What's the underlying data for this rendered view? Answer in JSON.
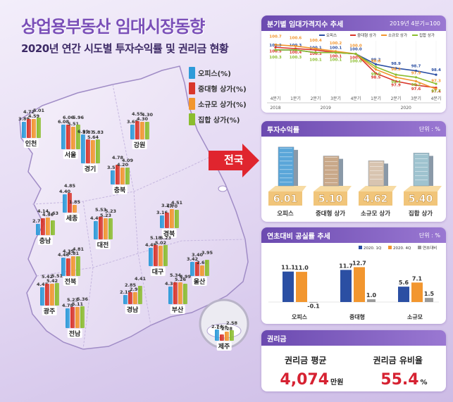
{
  "header": {
    "title": "상업용부동산 임대시장동향",
    "subtitle": "2020년 연간 시도별 투자수익률 및 권리금 현황"
  },
  "legend": [
    {
      "label": "오피스(%)",
      "color": "#2e9bd9"
    },
    {
      "label": "중대형 상가(%)",
      "color": "#d9362b"
    },
    {
      "label": "소규모 상가(%)",
      "color": "#f2962f"
    },
    {
      "label": "집합 상가(%)",
      "color": "#8bbd2e"
    }
  ],
  "arrow_label": "전국",
  "chart_data": [
    {
      "type": "bar",
      "title": "",
      "series_names": [
        "오피스(%)",
        "중대형 상가(%)",
        "소규모 상가(%)",
        "집합 상가(%)"
      ],
      "regions": [
        {
          "name": "인천",
          "values": [
            3.89,
            4.72,
            4.59,
            5.01
          ]
        },
        {
          "name": "서울",
          "values": [
            6.08,
            6.06,
            5.51,
            5.96
          ]
        },
        {
          "name": "경기",
          "values": [
            6.99,
            5.87,
            5.64,
            5.83
          ]
        },
        {
          "name": "강원",
          "values": [
            3.68,
            4.55,
            4.3,
            4.3
          ]
        },
        {
          "name": "충북",
          "values": [
            3.51,
            4.78,
            4.2,
            4.09
          ]
        },
        {
          "name": "세종",
          "values": [
            4.4,
            4.85,
            1.85,
            null
          ]
        },
        {
          "name": "충남",
          "values": [
            2.76,
            4.14,
            4.36,
            3.63
          ]
        },
        {
          "name": "대전",
          "values": [
            4.49,
            5.53,
            5.23,
            5.23
          ]
        },
        {
          "name": "경북",
          "values": [
            3.16,
            3.79,
            4.7,
            4.51
          ]
        },
        {
          "name": "전북",
          "values": [
            4.46,
            4.39,
            4.81,
            4.81
          ]
        },
        {
          "name": "대구",
          "values": [
            4.48,
            5.18,
            5.02,
            5.23
          ]
        },
        {
          "name": "울산",
          "values": [
            3.42,
            3.4,
            2.62,
            3.95
          ]
        },
        {
          "name": "광주",
          "values": [
            4.42,
            5.42,
            5.42,
            5.51
          ]
        },
        {
          "name": "경남",
          "values": [
            2.19,
            2.85,
            2.96,
            4.41
          ]
        },
        {
          "name": "부산",
          "values": [
            4.34,
            5.34,
            5.26,
            4.99
          ]
        },
        {
          "name": "전남",
          "values": [
            4.78,
            5.23,
            5.11,
            5.36
          ]
        },
        {
          "name": "제주",
          "values": [
            2.74,
            1.58,
            2.28,
            2.58
          ]
        }
      ]
    },
    {
      "type": "line",
      "title": "분기별 임대가격지수 추세",
      "note": "2019년 4분기=100",
      "x": [
        "4분기",
        "1분기",
        "2분기",
        "3분기",
        "4분기",
        "1분기",
        "2분기",
        "3분기",
        "4분기"
      ],
      "years": [
        {
          "label": "2018"
        },
        {
          "label": "2019"
        },
        {
          "label": "2020"
        }
      ],
      "series": [
        {
          "name": "오피스",
          "color": "#2b4fa3",
          "values": [
            100.3,
            100.3,
            100.1,
            100.1,
            100.0,
            99.2,
            98.9,
            98.7,
            98.4
          ]
        },
        {
          "name": "중대형 상가",
          "color": "#d9362b",
          "values": [
            100.5,
            100.4,
            100.3,
            100.1,
            100.0,
            98.5,
            97.9,
            97.6,
            97.4
          ]
        },
        {
          "name": "소규모 상가",
          "color": "#f2962f",
          "values": [
            100.7,
            100.6,
            100.4,
            100.2,
            100.0,
            98.8,
            98.2,
            97.9,
            97.3
          ]
        },
        {
          "name": "집합 상가",
          "color": "#8bbd2e",
          "values": [
            100.3,
            100.3,
            100.1,
            100.1,
            100.0,
            99.0,
            98.4,
            98.2,
            97.7
          ]
        }
      ]
    },
    {
      "type": "bar",
      "title": "투자수익률",
      "unit": "단위 : %",
      "categories": [
        "오피스",
        "중대형 상가",
        "소규모 상가",
        "집합 상가"
      ],
      "values": [
        6.01,
        5.1,
        4.62,
        5.4
      ]
    },
    {
      "type": "bar",
      "title": "연초대비 공실률 추세",
      "unit": "단위 : %",
      "categories": [
        "오피스",
        "중대형",
        "소규모"
      ],
      "series": [
        {
          "name": "2020. 1Q",
          "color": "#2b4fa3",
          "values": [
            11.1,
            11.7,
            5.6
          ]
        },
        {
          "name": "2020. 4Q",
          "color": "#f2962f",
          "values": [
            11.0,
            12.7,
            7.1
          ]
        },
        {
          "name": "연초대비",
          "color": "#9a9a9a",
          "values": [
            -0.1,
            1.0,
            1.5
          ]
        }
      ]
    }
  ],
  "premium": {
    "title": "권리금",
    "avg_label": "권리금 평균",
    "avg_value": "4,074",
    "avg_unit": "만원",
    "ratio_label": "권리금 유비율",
    "ratio_value": "55.4",
    "ratio_unit": "%"
  }
}
